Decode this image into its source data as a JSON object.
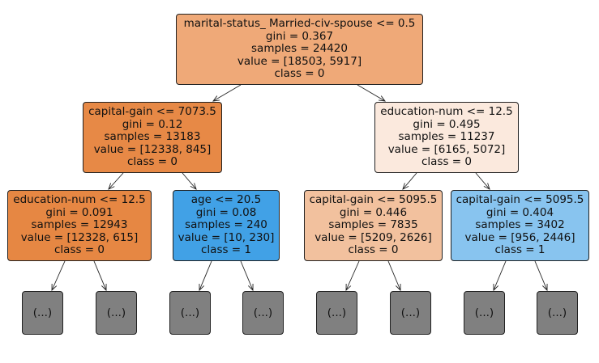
{
  "nodes": [
    {
      "lines": [
        "marital-status_ Married-civ-spouse <= 0.5",
        "gini = 0.367",
        "samples = 24420",
        "value = [18503, 5917]",
        "class = 0"
      ],
      "color": "#efa978"
    },
    {
      "lines": [
        "capital-gain <= 7073.5",
        "gini = 0.12",
        "samples = 13183",
        "value = [12338, 845]",
        "class = 0"
      ],
      "color": "#e78946"
    },
    {
      "lines": [
        "education-num <= 12.5",
        "gini = 0.495",
        "samples = 11237",
        "value = [6165, 5072]",
        "class = 0"
      ],
      "color": "#fbe9dd"
    },
    {
      "lines": [
        "education-num <= 12.5",
        "gini = 0.091",
        "samples = 12943",
        "value = [12328, 615]",
        "class = 0"
      ],
      "color": "#e68743"
    },
    {
      "lines": [
        "age <= 20.5",
        "gini = 0.08",
        "samples = 240",
        "value = [10, 230]",
        "class = 1"
      ],
      "color": "#41a1e6"
    },
    {
      "lines": [
        "capital-gain <= 5095.5",
        "gini = 0.446",
        "samples = 7835",
        "value = [5209, 2626]",
        "class = 0"
      ],
      "color": "#f2c19e"
    },
    {
      "lines": [
        "capital-gain <= 5095.5",
        "gini = 0.404",
        "samples = 3402",
        "value = [956, 2446]",
        "class = 1"
      ],
      "color": "#88c4ef"
    }
  ],
  "leaf_label": "(...)",
  "leaf_color": "#808080"
}
